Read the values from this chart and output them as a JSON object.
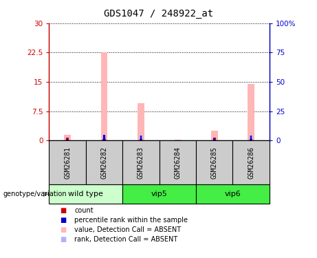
{
  "title": "GDS1047 / 248922_at",
  "samples": [
    "GSM26281",
    "GSM26282",
    "GSM26283",
    "GSM26284",
    "GSM26285",
    "GSM26286"
  ],
  "pink_bar_values": [
    1.5,
    22.5,
    9.5,
    0.2,
    2.5,
    14.5
  ],
  "blue_bar_values": [
    1.2,
    5.0,
    4.5,
    0.3,
    1.8,
    4.5
  ],
  "red_marker_values": [
    0.7,
    0.4,
    0.4,
    0.05,
    0.7,
    0.4
  ],
  "blue_marker_values": [
    1.2,
    5.0,
    4.5,
    0.3,
    1.8,
    4.5
  ],
  "ylim_left": [
    0,
    30
  ],
  "ylim_right": [
    0,
    100
  ],
  "yticks_left": [
    0,
    7.5,
    15,
    22.5,
    30
  ],
  "ytick_labels_left": [
    "0",
    "7.5",
    "15",
    "22.5",
    "30"
  ],
  "yticks_right": [
    0,
    25,
    50,
    75,
    100
  ],
  "ytick_labels_right": [
    "0",
    "25",
    "50",
    "75",
    "100%"
  ],
  "left_axis_color": "#cc0000",
  "right_axis_color": "#0000cc",
  "sample_box_color": "#cccccc",
  "wild_type_color": "#ccffcc",
  "vip5_color": "#44ee44",
  "vip6_color": "#44ee44",
  "pink_color": "#ffb6b6",
  "blue_bar_color": "#b0b0ff",
  "red_marker_color": "#cc0000",
  "blue_marker_color": "#0000cc",
  "groups_info": [
    {
      "name": "wild type",
      "start": 0,
      "end": 2,
      "color": "#ccffcc"
    },
    {
      "name": "vip5",
      "start": 2,
      "end": 4,
      "color": "#44ee44"
    },
    {
      "name": "vip6",
      "start": 4,
      "end": 6,
      "color": "#44ee44"
    }
  ],
  "legend_items": [
    {
      "label": "count",
      "color": "#cc0000"
    },
    {
      "label": "percentile rank within the sample",
      "color": "#0000cc"
    },
    {
      "label": "value, Detection Call = ABSENT",
      "color": "#ffb6b6"
    },
    {
      "label": "rank, Detection Call = ABSENT",
      "color": "#b0b0ff"
    }
  ],
  "genotype_label": "genotype/variation"
}
